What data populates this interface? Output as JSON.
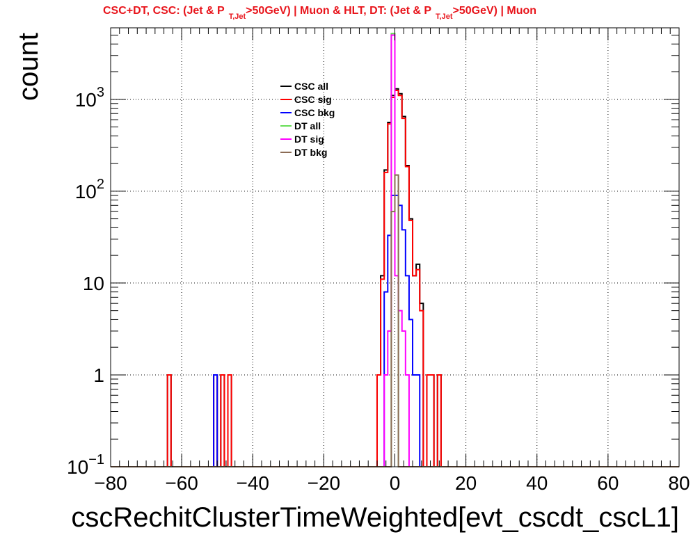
{
  "title": {
    "part1": "CSC+DT, CSC: (Jet & P",
    "sub1": "T,Jet",
    "part2": ">50GeV) | Muon & HLT, DT: (Jet & P",
    "sub2": "T,Jet",
    "part3": ">50GeV) | Muon",
    "color": "#e8141b"
  },
  "chart_data": {
    "type": "histogram",
    "xlabel": "cscRechitClusterTimeWeighted[evt_cscdt_cscL1]",
    "ylabel": "count",
    "xlim": [
      -80,
      80
    ],
    "ylim": [
      0.1,
      6000
    ],
    "yscale": "log",
    "grid": true,
    "legend_position": "top-center",
    "bin_width": 1,
    "x_ticks": [
      -80,
      -60,
      -40,
      -20,
      0,
      20,
      40,
      60,
      80
    ],
    "x_tick_labels": [
      "−80",
      "−60",
      "−40",
      "−20",
      "0",
      "20",
      "40",
      "60",
      "80"
    ],
    "y_ticks": [
      {
        "value": 0.1,
        "base": "10",
        "exp": "−1"
      },
      {
        "value": 1,
        "base": "1",
        "exp": ""
      },
      {
        "value": 10,
        "base": "10",
        "exp": ""
      },
      {
        "value": 100,
        "base": "10",
        "exp": "2"
      },
      {
        "value": 1000,
        "base": "10",
        "exp": "3"
      }
    ],
    "series": [
      {
        "name": "CSC all",
        "color": "#000000",
        "bins": [
          [
            -64,
            1
          ],
          [
            -51,
            1
          ],
          [
            -49,
            1
          ],
          [
            -47,
            1
          ],
          [
            -5,
            1
          ],
          [
            -4,
            12
          ],
          [
            -3,
            170
          ],
          [
            -2,
            560
          ],
          [
            -1,
            1100
          ],
          [
            0,
            1300
          ],
          [
            1,
            1150
          ],
          [
            2,
            650
          ],
          [
            3,
            190
          ],
          [
            4,
            50
          ],
          [
            5,
            12
          ],
          [
            6,
            16
          ],
          [
            7,
            6
          ],
          [
            9,
            1
          ],
          [
            10,
            1
          ],
          [
            12,
            1
          ]
        ]
      },
      {
        "name": "CSC sig",
        "color": "#ff0000",
        "bins": [
          [
            -64,
            1
          ],
          [
            -51,
            1
          ],
          [
            -49,
            1
          ],
          [
            -47,
            1
          ],
          [
            -5,
            1
          ],
          [
            -4,
            11
          ],
          [
            -3,
            160
          ],
          [
            -2,
            540
          ],
          [
            -1,
            1050
          ],
          [
            0,
            1250
          ],
          [
            1,
            1100
          ],
          [
            2,
            620
          ],
          [
            3,
            185
          ],
          [
            4,
            48
          ],
          [
            5,
            12
          ],
          [
            6,
            14
          ],
          [
            7,
            5
          ],
          [
            9,
            1
          ],
          [
            10,
            1
          ],
          [
            12,
            1
          ]
        ]
      },
      {
        "name": "CSC bkg",
        "color": "#0000ff",
        "bins": [
          [
            -51,
            1
          ],
          [
            -3,
            8
          ],
          [
            -2,
            33
          ],
          [
            -1,
            90
          ],
          [
            0,
            90
          ],
          [
            1,
            70
          ],
          [
            2,
            38
          ],
          [
            3,
            12
          ],
          [
            4,
            4
          ],
          [
            5,
            1
          ],
          [
            6,
            1
          ]
        ]
      },
      {
        "name": "DT all",
        "color": "#66dd55",
        "bins": [
          [
            -1,
            5200
          ],
          [
            0,
            150
          ]
        ]
      },
      {
        "name": "DT sig",
        "color": "#ff00ff",
        "bins": [
          [
            -3,
            1
          ],
          [
            -2,
            3
          ],
          [
            -1,
            5000
          ],
          [
            0,
            12
          ],
          [
            1,
            5
          ],
          [
            2,
            3
          ],
          [
            3,
            1
          ]
        ]
      },
      {
        "name": "DT bkg",
        "color": "#8b6b55",
        "bins": [
          [
            -1,
            60
          ],
          [
            0,
            150
          ]
        ]
      }
    ]
  }
}
